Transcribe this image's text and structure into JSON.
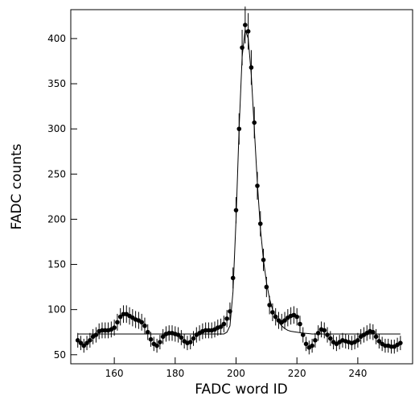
{
  "chart_data": {
    "type": "scatter",
    "xlabel": "FADC word ID",
    "ylabel": "FADC counts",
    "xlim": [
      145.7,
      258
    ],
    "ylim": [
      40,
      432
    ],
    "xticks": [
      160,
      180,
      200,
      220,
      240
    ],
    "yticks": [
      50,
      100,
      150,
      200,
      250,
      300,
      350,
      400
    ],
    "series": [
      {
        "type": "scatter",
        "color": "#000000",
        "x": [
          148,
          149,
          150,
          151,
          152,
          153,
          154,
          155,
          156,
          157,
          158,
          159,
          160,
          161,
          162,
          163,
          164,
          165,
          166,
          167,
          168,
          169,
          170,
          171,
          172,
          173,
          174,
          175,
          176,
          177,
          178,
          179,
          180,
          181,
          182,
          183,
          184,
          185,
          186,
          187,
          188,
          189,
          190,
          191,
          192,
          193,
          194,
          195,
          196,
          197,
          198,
          199,
          200,
          201,
          202,
          203,
          204,
          205,
          206,
          207,
          208,
          209,
          210,
          211,
          212,
          213,
          214,
          215,
          216,
          217,
          218,
          219,
          220,
          221,
          222,
          223,
          224,
          225,
          226,
          227,
          228,
          229,
          230,
          231,
          232,
          233,
          234,
          235,
          236,
          237,
          238,
          239,
          240,
          241,
          242,
          243,
          244,
          245,
          246,
          247,
          248,
          249,
          250,
          251,
          252,
          253,
          254
        ],
        "values": [
          66,
          63,
          60,
          63,
          66,
          70,
          72,
          76,
          77,
          77,
          77,
          78,
          80,
          86,
          92,
          95,
          95,
          93,
          91,
          89,
          88,
          86,
          82,
          75,
          67,
          62,
          60,
          64,
          70,
          73,
          74,
          74,
          73,
          72,
          69,
          65,
          63,
          64,
          68,
          72,
          74,
          76,
          77,
          77,
          77,
          78,
          80,
          81,
          84,
          90,
          98,
          135,
          210,
          300,
          390,
          415,
          408,
          368,
          307,
          237,
          195,
          155,
          125,
          105,
          97,
          92,
          88,
          86,
          88,
          91,
          93,
          94,
          92,
          84,
          72,
          62,
          58,
          60,
          66,
          74,
          78,
          77,
          72,
          68,
          64,
          62,
          64,
          66,
          65,
          64,
          63,
          64,
          66,
          70,
          72,
          74,
          76,
          75,
          70,
          65,
          62,
          60,
          60,
          59,
          59,
          61,
          63
        ],
        "errors": [
          8.1,
          7.9,
          7.7,
          7.9,
          8.1,
          8.4,
          8.5,
          8.7,
          8.8,
          8.8,
          8.8,
          8.8,
          8.9,
          9.3,
          9.6,
          9.7,
          9.7,
          9.6,
          9.5,
          9.4,
          9.4,
          9.3,
          9.1,
          8.7,
          8.2,
          7.9,
          7.7,
          8.0,
          8.4,
          8.5,
          8.6,
          8.6,
          8.5,
          8.5,
          8.3,
          8.1,
          7.9,
          8.0,
          8.2,
          8.5,
          8.6,
          8.7,
          8.8,
          8.8,
          8.8,
          8.8,
          8.9,
          9.0,
          9.2,
          9.5,
          9.9,
          11.6,
          14.5,
          17.3,
          19.7,
          20.4,
          20.2,
          19.2,
          17.5,
          15.4,
          14.0,
          12.4,
          11.2,
          10.2,
          9.8,
          9.6,
          9.4,
          9.3,
          9.4,
          9.5,
          9.6,
          9.7,
          9.6,
          9.2,
          8.5,
          7.9,
          7.6,
          7.7,
          8.1,
          8.6,
          8.8,
          8.8,
          8.5,
          8.2,
          8.0,
          7.9,
          8.0,
          8.1,
          8.1,
          8.0,
          7.9,
          8.0,
          8.1,
          8.4,
          8.5,
          8.6,
          8.7,
          8.7,
          8.4,
          8.1,
          7.9,
          7.7,
          7.7,
          7.7,
          7.7,
          7.8,
          7.9
        ]
      },
      {
        "type": "line",
        "color": "#000000",
        "x": [
          148,
          196,
          197,
          198,
          199,
          200,
          201,
          202,
          203,
          204,
          205,
          206,
          207,
          208,
          209,
          210,
          211,
          212,
          213,
          214,
          215,
          216,
          217,
          218,
          220,
          222,
          225,
          254
        ],
        "values": [
          73,
          73,
          75,
          82,
          120,
          200,
          300,
          380,
          410,
          400,
          360,
          300,
          240,
          190,
          155,
          130,
          112,
          100,
          92,
          86,
          82,
          79,
          77,
          76,
          75,
          74,
          73,
          73
        ]
      }
    ]
  }
}
